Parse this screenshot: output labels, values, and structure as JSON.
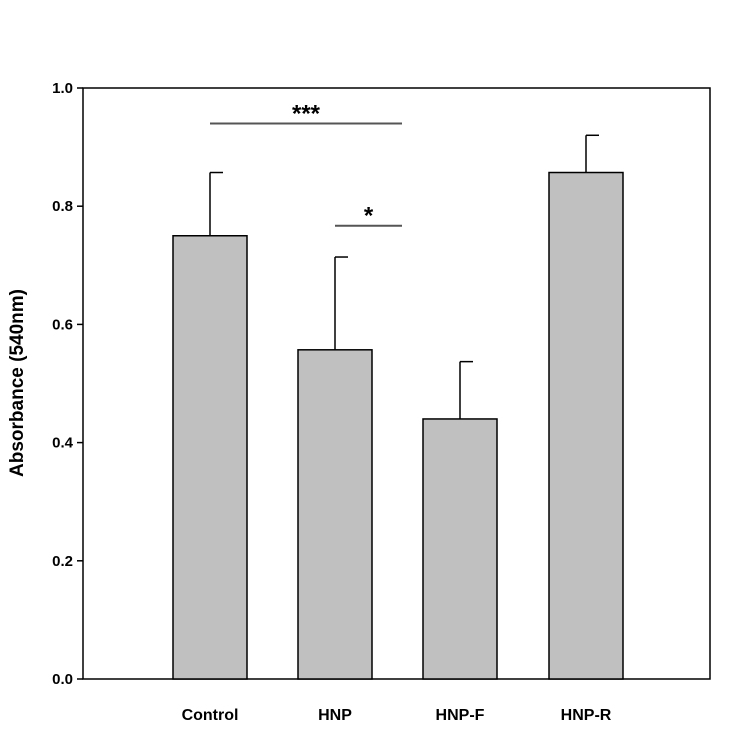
{
  "chart_data": {
    "type": "bar",
    "categories": [
      "Control",
      "HNP",
      "HNP-F",
      "HNP-R"
    ],
    "values": [
      0.75,
      0.557,
      0.44,
      0.857
    ],
    "errors": [
      0.107,
      0.157,
      0.097,
      0.063
    ],
    "title": "",
    "xlabel": "",
    "ylabel": "Absorbance (540nm)",
    "ylim": [
      0,
      1.0
    ],
    "yticks": [
      "0.0",
      "0.2",
      "0.4",
      "0.6",
      "0.8",
      "1.0"
    ],
    "grid": false,
    "colors": {
      "bar": "#c0c0c0",
      "stroke": "#000000"
    },
    "annotations": [
      {
        "text": "***",
        "from_category": "Control",
        "to_category": "HNP-F",
        "y": 0.94
      },
      {
        "text": "*",
        "from_category": "HNP",
        "to_category": "HNP-F",
        "y": 0.767
      }
    ]
  }
}
